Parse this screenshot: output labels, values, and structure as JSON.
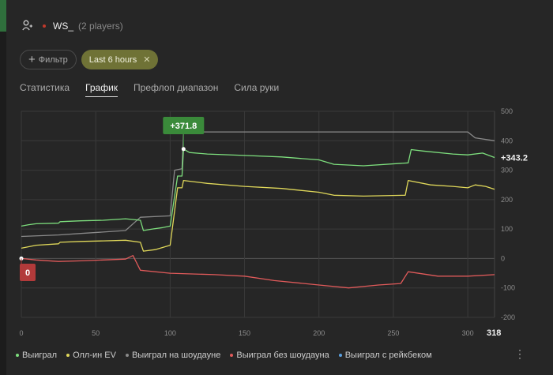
{
  "header": {
    "player_name": "WS_",
    "players_count": "(2 players)"
  },
  "filters": {
    "filter_label": "Фильтр",
    "time_label": "Last 6 hours"
  },
  "tabs": [
    {
      "label": "Статистика",
      "active": false
    },
    {
      "label": "График",
      "active": true
    },
    {
      "label": "Префлоп диапазон",
      "active": false
    },
    {
      "label": "Сила руки",
      "active": false
    }
  ],
  "chart_data": {
    "type": "line",
    "xlim": [
      0,
      318
    ],
    "ylim": [
      -200,
      500
    ],
    "x_ticks": [
      0,
      50,
      100,
      150,
      200,
      250,
      300,
      318
    ],
    "y_ticks": [
      500,
      400,
      300,
      200,
      100,
      0,
      -100,
      -200
    ],
    "grid": true,
    "legend_position": "bottom",
    "series": [
      {
        "name": "Выиграл",
        "color": "#7dde7d",
        "points": [
          [
            0,
            110
          ],
          [
            5,
            115
          ],
          [
            10,
            118
          ],
          [
            25,
            120
          ],
          [
            26,
            125
          ],
          [
            40,
            128
          ],
          [
            55,
            130
          ],
          [
            70,
            135
          ],
          [
            80,
            130
          ],
          [
            82,
            95
          ],
          [
            88,
            100
          ],
          [
            95,
            105
          ],
          [
            100,
            110
          ],
          [
            105,
            280
          ],
          [
            108,
            280
          ],
          [
            109,
            371.8
          ],
          [
            113,
            360
          ],
          [
            125,
            355
          ],
          [
            150,
            350
          ],
          [
            175,
            345
          ],
          [
            200,
            335
          ],
          [
            210,
            320
          ],
          [
            230,
            315
          ],
          [
            260,
            325
          ],
          [
            262,
            370
          ],
          [
            270,
            365
          ],
          [
            290,
            355
          ],
          [
            300,
            352
          ],
          [
            310,
            358
          ],
          [
            318,
            343.2
          ]
        ]
      },
      {
        "name": "Олл-ин EV",
        "color": "#e0d85a",
        "points": [
          [
            0,
            35
          ],
          [
            5,
            40
          ],
          [
            10,
            45
          ],
          [
            25,
            50
          ],
          [
            26,
            55
          ],
          [
            40,
            58
          ],
          [
            55,
            60
          ],
          [
            70,
            62
          ],
          [
            80,
            55
          ],
          [
            82,
            25
          ],
          [
            90,
            30
          ],
          [
            100,
            45
          ],
          [
            105,
            240
          ],
          [
            108,
            240
          ],
          [
            109,
            265
          ],
          [
            125,
            255
          ],
          [
            150,
            245
          ],
          [
            175,
            238
          ],
          [
            200,
            225
          ],
          [
            210,
            215
          ],
          [
            230,
            212
          ],
          [
            258,
            215
          ],
          [
            260,
            265
          ],
          [
            275,
            250
          ],
          [
            290,
            245
          ],
          [
            300,
            240
          ],
          [
            305,
            250
          ],
          [
            312,
            245
          ],
          [
            318,
            235
          ]
        ]
      },
      {
        "name": "Выиграл на шоудауне",
        "color": "#8a8a8a",
        "points": [
          [
            0,
            75
          ],
          [
            25,
            80
          ],
          [
            40,
            85
          ],
          [
            55,
            90
          ],
          [
            70,
            95
          ],
          [
            80,
            140
          ],
          [
            100,
            145
          ],
          [
            103,
            300
          ],
          [
            108,
            305
          ],
          [
            109,
            430
          ],
          [
            200,
            430
          ],
          [
            300,
            430
          ],
          [
            305,
            410
          ],
          [
            318,
            400
          ]
        ]
      },
      {
        "name": "Выиграл без шоудауна",
        "color": "#e05a5a",
        "points": [
          [
            0,
            0
          ],
          [
            10,
            -5
          ],
          [
            25,
            -10
          ],
          [
            40,
            -8
          ],
          [
            55,
            -5
          ],
          [
            70,
            -2
          ],
          [
            75,
            10
          ],
          [
            80,
            -40
          ],
          [
            100,
            -50
          ],
          [
            130,
            -55
          ],
          [
            150,
            -60
          ],
          [
            170,
            -75
          ],
          [
            190,
            -85
          ],
          [
            200,
            -90
          ],
          [
            220,
            -100
          ],
          [
            240,
            -90
          ],
          [
            255,
            -85
          ],
          [
            260,
            -45
          ],
          [
            280,
            -60
          ],
          [
            300,
            -60
          ],
          [
            318,
            -55
          ]
        ]
      },
      {
        "name": "Выиграл с рейкбеком",
        "color": "#5aa0e0",
        "points": []
      }
    ],
    "annotations": {
      "peak_label": "+371.8",
      "end_label": "+343.2",
      "start_label": "0"
    }
  },
  "colors": {
    "peak_badge": "#3a8a3a",
    "start_badge": "#b23a3a",
    "grid": "#3a3a3a",
    "axis_text": "#8c8c8c"
  }
}
